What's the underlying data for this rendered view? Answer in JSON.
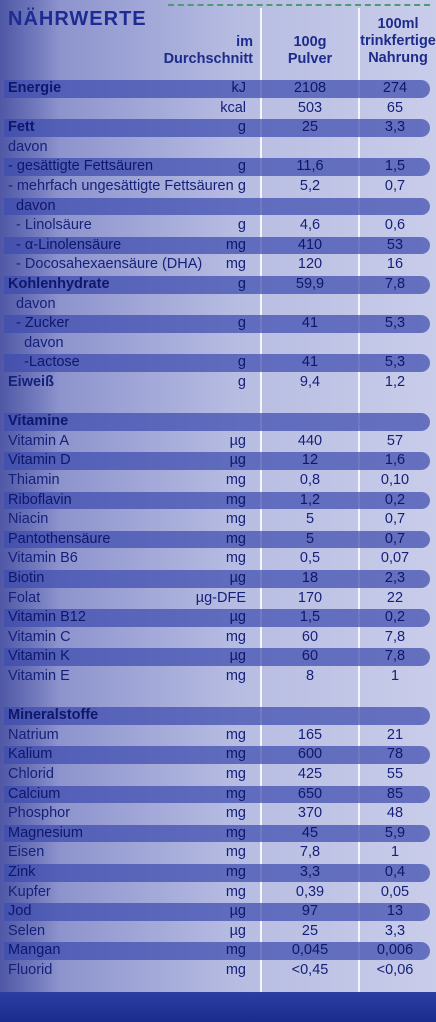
{
  "title": "NÄHRWERTE",
  "header": {
    "col0": "im\nDurchschnitt",
    "col1": "100g\nPulver",
    "col2": "100ml\ntrinkfertige\nNahrung"
  },
  "colors": {
    "title": "#1d2b94",
    "band": "#3e4cae",
    "background": "#b7bde2",
    "dashed_line": "#4c9a76"
  },
  "rows": [
    {
      "label": "Energie",
      "unit": "kJ",
      "v1": "2108",
      "v2": "274",
      "bold": true,
      "shaded": true
    },
    {
      "label": "",
      "unit": "kcal",
      "v1": "503",
      "v2": "65",
      "bold": false,
      "shaded": false
    },
    {
      "label": "Fett",
      "unit": "g",
      "v1": "25",
      "v2": "3,3",
      "bold": true,
      "shaded": true
    },
    {
      "label": "davon",
      "unit": "",
      "v1": "",
      "v2": "",
      "bold": false,
      "shaded": false
    },
    {
      "label": "- gesättigte Fettsäuren",
      "unit": "g",
      "v1": "11,6",
      "v2": "1,5",
      "bold": false,
      "shaded": true
    },
    {
      "label": "- mehrfach ungesättigte Fettsäuren",
      "unit": "g",
      "v1": "5,2",
      "v2": "0,7",
      "bold": false,
      "shaded": false
    },
    {
      "label": "  davon",
      "unit": "",
      "v1": "",
      "v2": "",
      "bold": false,
      "shaded": true
    },
    {
      "label": "  - Linolsäure",
      "unit": "g",
      "v1": "4,6",
      "v2": "0,6",
      "bold": false,
      "shaded": false
    },
    {
      "label": "  - α-Linolensäure",
      "unit": "mg",
      "v1": "410",
      "v2": "53",
      "bold": false,
      "shaded": true
    },
    {
      "label": "  - Docosahexaensäure (DHA)",
      "unit": "mg",
      "v1": "120",
      "v2": "16",
      "bold": false,
      "shaded": false
    },
    {
      "label": "Kohlenhydrate",
      "unit": "g",
      "v1": "59,9",
      "v2": "7,8",
      "bold": true,
      "shaded": true
    },
    {
      "label": "  davon",
      "unit": "",
      "v1": "",
      "v2": "",
      "bold": false,
      "shaded": false
    },
    {
      "label": "  - Zucker",
      "unit": "g",
      "v1": "41",
      "v2": "5,3",
      "bold": false,
      "shaded": true
    },
    {
      "label": "    davon",
      "unit": "",
      "v1": "",
      "v2": "",
      "bold": false,
      "shaded": false
    },
    {
      "label": "    -Lactose",
      "unit": "g",
      "v1": "41",
      "v2": "5,3",
      "bold": false,
      "shaded": true
    },
    {
      "label": "Eiweiß",
      "unit": "g",
      "v1": "9,4",
      "v2": "1,2",
      "bold": true,
      "shaded": false
    },
    {
      "label": "",
      "unit": "",
      "v1": "",
      "v2": "",
      "bold": false,
      "shaded": false
    },
    {
      "label": "Vitamine",
      "unit": "",
      "v1": "",
      "v2": "",
      "bold": true,
      "shaded": true
    },
    {
      "label": "Vitamin A",
      "unit": "µg",
      "v1": "440",
      "v2": "57",
      "bold": false,
      "shaded": false
    },
    {
      "label": "Vitamin D",
      "unit": "µg",
      "v1": "12",
      "v2": "1,6",
      "bold": false,
      "shaded": true
    },
    {
      "label": "Thiamin",
      "unit": "mg",
      "v1": "0,8",
      "v2": "0,10",
      "bold": false,
      "shaded": false
    },
    {
      "label": "Riboflavin",
      "unit": "mg",
      "v1": "1,2",
      "v2": "0,2",
      "bold": false,
      "shaded": true
    },
    {
      "label": "Niacin",
      "unit": "mg",
      "v1": "5",
      "v2": "0,7",
      "bold": false,
      "shaded": false
    },
    {
      "label": "Pantothensäure",
      "unit": "mg",
      "v1": "5",
      "v2": "0,7",
      "bold": false,
      "shaded": true
    },
    {
      "label": "Vitamin B6",
      "unit": "mg",
      "v1": "0,5",
      "v2": "0,07",
      "bold": false,
      "shaded": false
    },
    {
      "label": "Biotin",
      "unit": "µg",
      "v1": "18",
      "v2": "2,3",
      "bold": false,
      "shaded": true
    },
    {
      "label": "Folat",
      "unit": "µg-DFE",
      "v1": "170",
      "v2": "22",
      "bold": false,
      "shaded": false
    },
    {
      "label": "Vitamin B12",
      "unit": "µg",
      "v1": "1,5",
      "v2": "0,2",
      "bold": false,
      "shaded": true
    },
    {
      "label": "Vitamin C",
      "unit": "mg",
      "v1": "60",
      "v2": "7,8",
      "bold": false,
      "shaded": false
    },
    {
      "label": "Vitamin K",
      "unit": "µg",
      "v1": "60",
      "v2": "7,8",
      "bold": false,
      "shaded": true
    },
    {
      "label": "Vitamin E",
      "unit": "mg",
      "v1": "8",
      "v2": "1",
      "bold": false,
      "shaded": false
    },
    {
      "label": "",
      "unit": "",
      "v1": "",
      "v2": "",
      "bold": false,
      "shaded": false
    },
    {
      "label": "Mineralstoffe",
      "unit": "",
      "v1": "",
      "v2": "",
      "bold": true,
      "shaded": true
    },
    {
      "label": "Natrium",
      "unit": "mg",
      "v1": "165",
      "v2": "21",
      "bold": false,
      "shaded": false
    },
    {
      "label": "Kalium",
      "unit": "mg",
      "v1": "600",
      "v2": "78",
      "bold": false,
      "shaded": true
    },
    {
      "label": "Chlorid",
      "unit": "mg",
      "v1": "425",
      "v2": "55",
      "bold": false,
      "shaded": false
    },
    {
      "label": "Calcium",
      "unit": "mg",
      "v1": "650",
      "v2": "85",
      "bold": false,
      "shaded": true
    },
    {
      "label": "Phosphor",
      "unit": "mg",
      "v1": "370",
      "v2": "48",
      "bold": false,
      "shaded": false
    },
    {
      "label": "Magnesium",
      "unit": "mg",
      "v1": "45",
      "v2": "5,9",
      "bold": false,
      "shaded": true
    },
    {
      "label": "Eisen",
      "unit": "mg",
      "v1": "7,8",
      "v2": "1",
      "bold": false,
      "shaded": false
    },
    {
      "label": "Zink",
      "unit": "mg",
      "v1": "3,3",
      "v2": "0,4",
      "bold": false,
      "shaded": true
    },
    {
      "label": "Kupfer",
      "unit": "mg",
      "v1": "0,39",
      "v2": "0,05",
      "bold": false,
      "shaded": false
    },
    {
      "label": "Jod",
      "unit": "µg",
      "v1": "97",
      "v2": "13",
      "bold": false,
      "shaded": true
    },
    {
      "label": "Selen",
      "unit": "µg",
      "v1": "25",
      "v2": "3,3",
      "bold": false,
      "shaded": false
    },
    {
      "label": "Mangan",
      "unit": "mg",
      "v1": "0,045",
      "v2": "0,006",
      "bold": false,
      "shaded": true
    },
    {
      "label": "Fluorid",
      "unit": "mg",
      "v1": "<0,45",
      "v2": "<0,06",
      "bold": false,
      "shaded": false
    }
  ]
}
